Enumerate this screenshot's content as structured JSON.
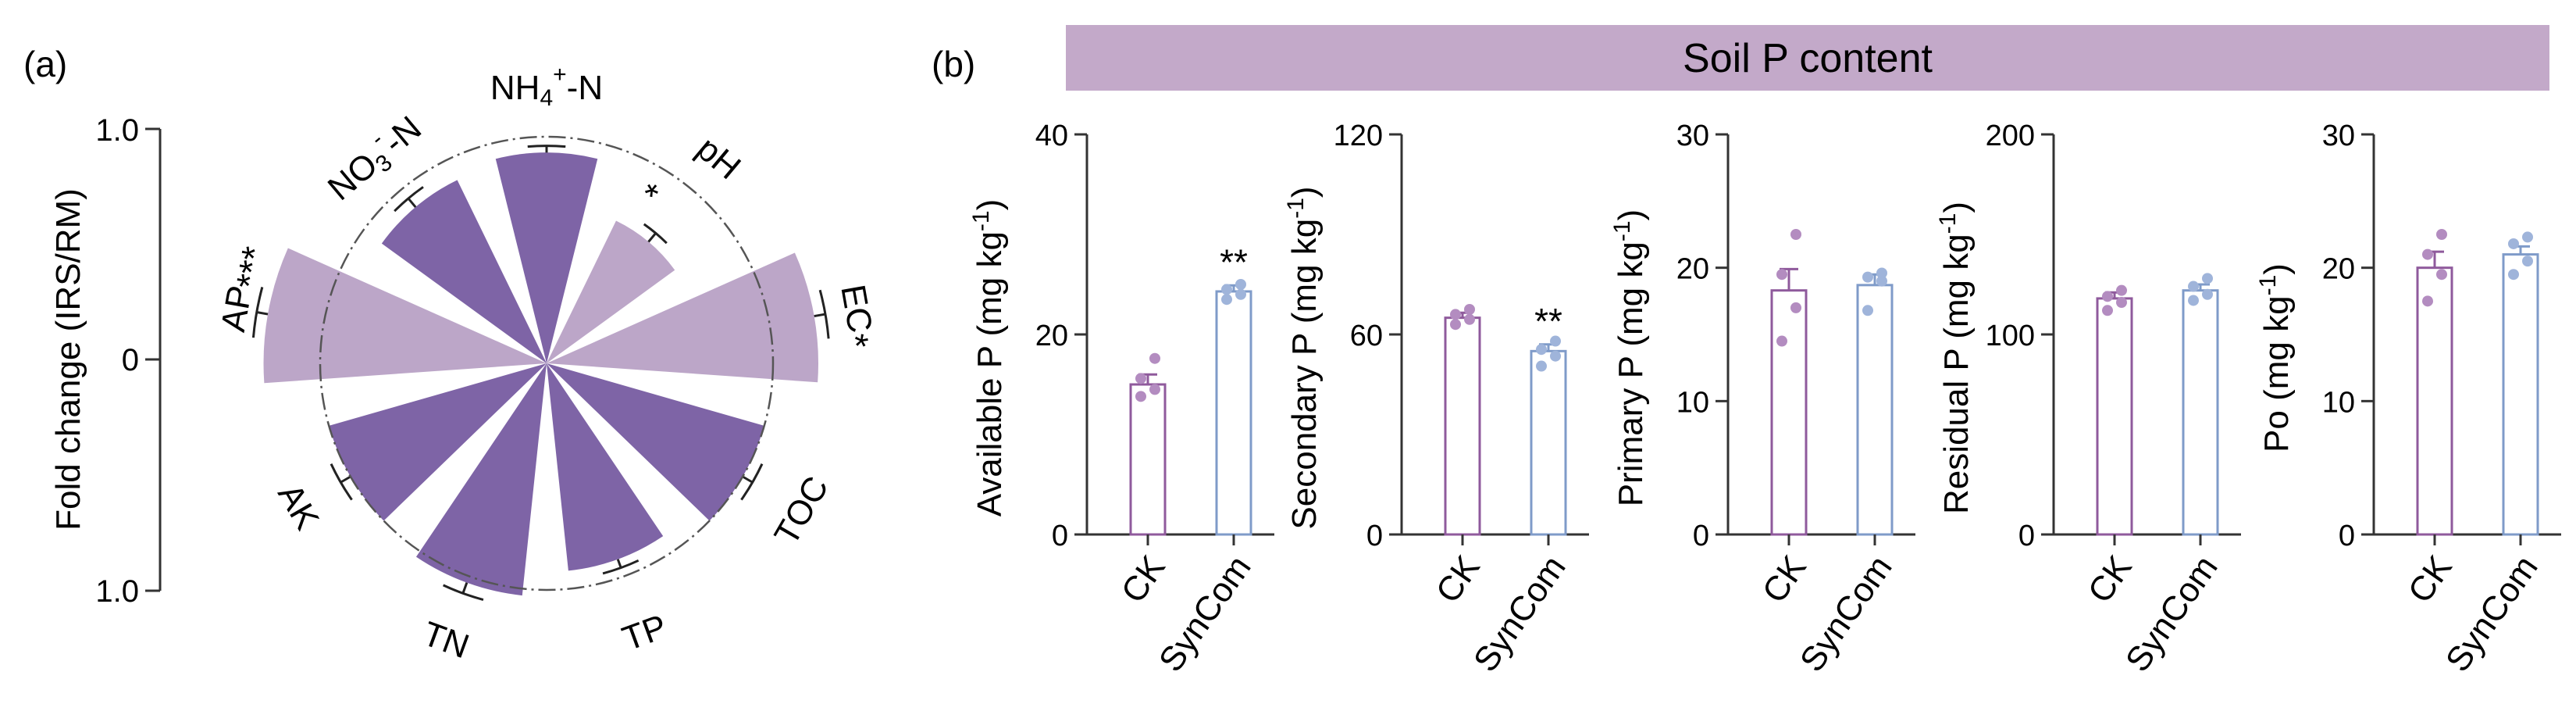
{
  "panel_a": {
    "label": "(a)",
    "axis_label": "Fold change (IRS/RM)",
    "axis_ticks": [
      "1.0",
      "0",
      "1.0"
    ],
    "colors": {
      "dark": "#7e64a6",
      "light": "#bca6c8"
    }
  },
  "panel_b": {
    "label": "(b)",
    "banner": "Soil P content",
    "colors": {
      "ck": "#8f5a9c",
      "syncom": "#7f9bc9",
      "ck_dot": "#b38cc0",
      "syncom_dot": "#9fb4da",
      "banner": "#c3a9c9"
    }
  },
  "chart_data": [
    {
      "type": "radial-bar",
      "title": "",
      "axis_label": "Fold change (IRS/RM)",
      "ylim": [
        -1.0,
        1.0
      ],
      "reference_circle": 0,
      "categories": [
        {
          "label": "NH4+-N",
          "label_html": [
            "NH",
            "4",
            "+",
            "-N"
          ],
          "value": 0.93,
          "err": 0.03,
          "sign": "up",
          "shade": "dark",
          "sig": ""
        },
        {
          "label": "pH",
          "value": 0.7,
          "err": 0.05,
          "sign": "up",
          "shade": "light",
          "sig": "*"
        },
        {
          "label": "EC",
          "value": 1.2,
          "err": 0.05,
          "sign": "up",
          "shade": "light",
          "sig": "*"
        },
        {
          "label": "TOC",
          "value": 1.0,
          "err": 0.05,
          "sign": "up",
          "shade": "dark",
          "sig": ""
        },
        {
          "label": "TP",
          "value": 0.92,
          "err": 0.04,
          "sign": "up",
          "shade": "dark",
          "sig": ""
        },
        {
          "label": "TN",
          "value": 1.03,
          "err": 0.05,
          "sign": "up",
          "shade": "dark",
          "sig": ""
        },
        {
          "label": "AK",
          "value": 1.0,
          "err": 0.05,
          "sign": "up",
          "shade": "dark",
          "sig": ""
        },
        {
          "label": "AP",
          "value": 1.25,
          "err": 0.05,
          "sign": "up",
          "shade": "light",
          "sig": "***"
        },
        {
          "label": "NO3--N",
          "value": 0.9,
          "err": 0.05,
          "sign": "up",
          "shade": "dark",
          "sig": ""
        }
      ]
    },
    {
      "type": "bar",
      "ylabel": "Available P (mg kg-1)",
      "ylabel_main": "Available P (mg kg",
      "ylabel_sup": "-1",
      "ylim": [
        0,
        40
      ],
      "yticks": [
        "0",
        "20",
        "40"
      ],
      "categories": [
        "CK",
        "SynCom"
      ],
      "values": [
        15.0,
        24.3
      ],
      "errors": [
        1.0,
        0.6
      ],
      "points": [
        [
          13.8,
          14.5,
          15.6,
          17.6
        ],
        [
          23.5,
          24.0,
          24.5,
          25.0
        ]
      ],
      "sig": [
        "",
        "**"
      ]
    },
    {
      "type": "bar",
      "ylabel": "Secondary P (mg kg-1)",
      "ylabel_main": "Secondary P (mg kg",
      "ylabel_sup": "-1",
      "ylim": [
        0,
        120
      ],
      "yticks": [
        "0",
        "60",
        "120"
      ],
      "categories": [
        "CK",
        "SynCom"
      ],
      "values": [
        65.0,
        55.0
      ],
      "errors": [
        1.5,
        2.0
      ],
      "points": [
        [
          63.0,
          64.5,
          66.0,
          67.5
        ],
        [
          50.5,
          53.5,
          55.5,
          58.0
        ]
      ],
      "sig": [
        "",
        "**"
      ]
    },
    {
      "type": "bar",
      "ylabel": "Primary P (mg kg-1)",
      "ylabel_main": "Primary P (mg kg",
      "ylabel_sup": "-1",
      "ylim": [
        0,
        30
      ],
      "yticks": [
        "0",
        "10",
        "20",
        "30"
      ],
      "categories": [
        "CK",
        "SynCom"
      ],
      "values": [
        18.3,
        18.7
      ],
      "errors": [
        1.6,
        0.8
      ],
      "points": [
        [
          14.5,
          17.0,
          19.5,
          22.5
        ],
        [
          16.8,
          19.0,
          19.3,
          19.6
        ]
      ],
      "sig": [
        "",
        ""
      ]
    },
    {
      "type": "bar",
      "ylabel": "Residual P (mg kg-1)",
      "ylabel_main": "Residual P (mg kg",
      "ylabel_sup": "-1",
      "ylim": [
        0,
        200
      ],
      "yticks": [
        "0",
        "100",
        "200"
      ],
      "categories": [
        "CK",
        "SynCom"
      ],
      "values": [
        118,
        122
      ],
      "errors": [
        3,
        3
      ],
      "points": [
        [
          112,
          116,
          119,
          122
        ],
        [
          117,
          120,
          124,
          128
        ]
      ],
      "sig": [
        "",
        ""
      ]
    },
    {
      "type": "bar",
      "ylabel": "Po (mg kg-1)",
      "ylabel_main": "Po (mg kg",
      "ylabel_sup": "-1",
      "ylim": [
        0,
        30
      ],
      "yticks": [
        "0",
        "10",
        "20",
        "30"
      ],
      "categories": [
        "CK",
        "SynCom"
      ],
      "values": [
        20.0,
        21.0
      ],
      "errors": [
        1.2,
        0.6
      ],
      "points": [
        [
          17.5,
          19.5,
          21.0,
          22.5
        ],
        [
          19.5,
          20.5,
          21.8,
          22.3
        ]
      ],
      "sig": [
        "",
        ""
      ]
    }
  ]
}
